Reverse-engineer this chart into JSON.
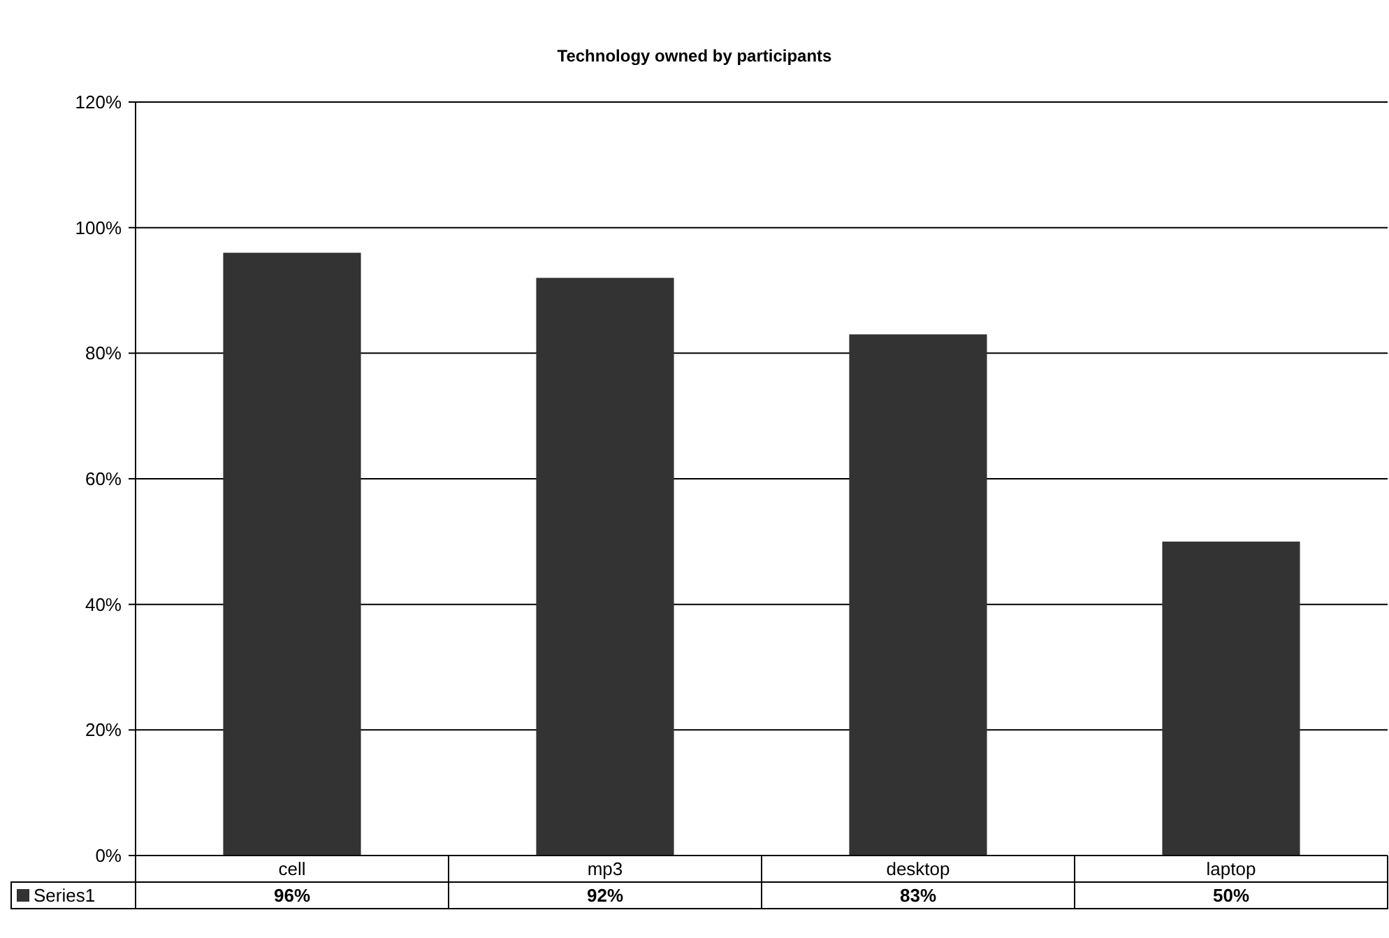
{
  "chart_data": {
    "type": "bar",
    "title": "Technology owned by participants",
    "categories": [
      "cell",
      "mp3",
      "desktop",
      "laptop"
    ],
    "series": [
      {
        "name": "Series1",
        "color": "#333333",
        "values": [
          96,
          92,
          83,
          50
        ],
        "value_labels": [
          "96%",
          "92%",
          "83%",
          "50%"
        ]
      }
    ],
    "ylim": [
      0,
      120
    ],
    "yticks": [
      {
        "value": 0,
        "label": "0%"
      },
      {
        "value": 20,
        "label": "20%"
      },
      {
        "value": 40,
        "label": "40%"
      },
      {
        "value": 60,
        "label": "60%"
      },
      {
        "value": 80,
        "label": "80%"
      },
      {
        "value": 100,
        "label": "100%"
      },
      {
        "value": 120,
        "label": "120%"
      }
    ],
    "grid": "y",
    "legend": "bottom"
  }
}
